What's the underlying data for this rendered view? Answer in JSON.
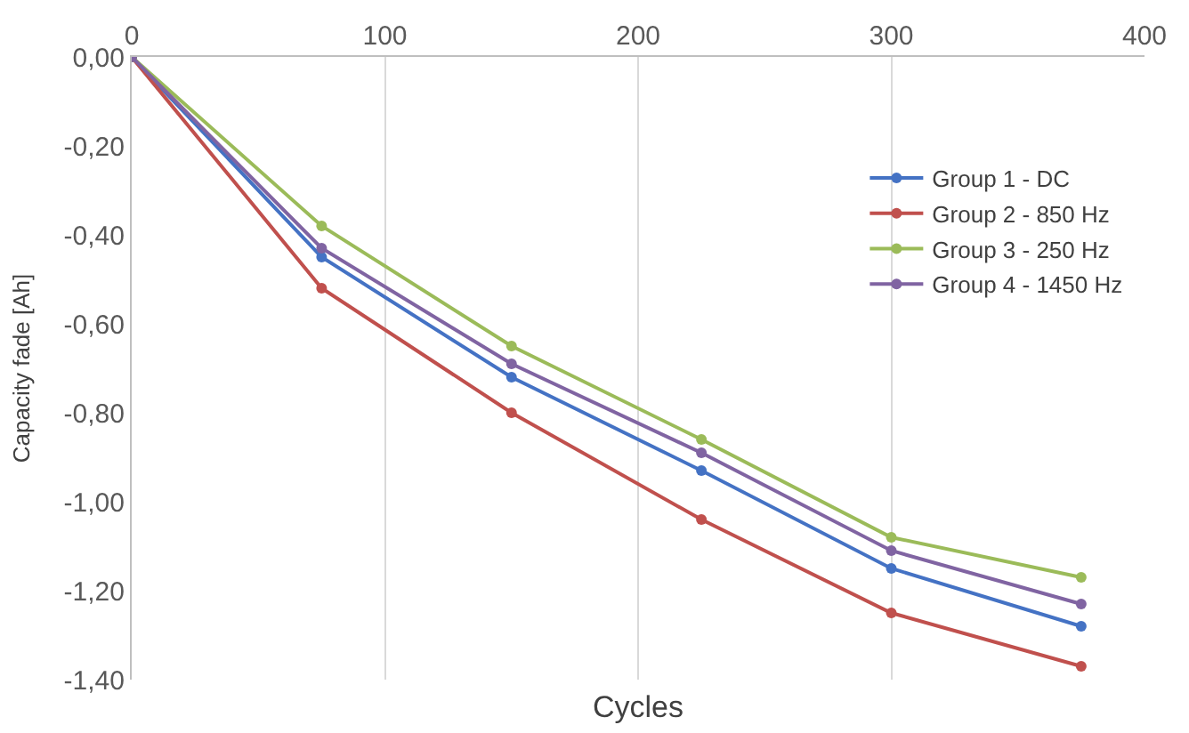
{
  "chart_data": {
    "type": "line",
    "xlabel": "Cycles",
    "ylabel": "Capacity fade [Ah]",
    "x": [
      0,
      75,
      150,
      225,
      300,
      375
    ],
    "series": [
      {
        "name": "Group 1 - DC",
        "color": "#4472c4",
        "values": [
          0,
          -0.45,
          -0.72,
          -0.93,
          -1.15,
          -1.28
        ]
      },
      {
        "name": "Group 2 - 850 Hz",
        "color": "#c0504d",
        "values": [
          0,
          -0.52,
          -0.8,
          -1.04,
          -1.25,
          -1.37
        ]
      },
      {
        "name": "Group 3 - 250 Hz",
        "color": "#9bbb59",
        "values": [
          0,
          -0.38,
          -0.65,
          -0.86,
          -1.08,
          -1.17
        ]
      },
      {
        "name": "Group 4 - 1450 Hz",
        "color": "#8064a2",
        "values": [
          0,
          -0.43,
          -0.69,
          -0.89,
          -1.11,
          -1.23
        ]
      }
    ],
    "xlim": [
      0,
      400
    ],
    "xticks": [
      0,
      100,
      200,
      300,
      400
    ],
    "ylim": [
      -1.4,
      0
    ],
    "yticks": [
      {
        "value": 0,
        "label": "0,00"
      },
      {
        "value": -0.2,
        "label": "-0,20"
      },
      {
        "value": -0.4,
        "label": "-0,40"
      },
      {
        "value": -0.6,
        "label": "-0,60"
      },
      {
        "value": -0.8,
        "label": "-0,80"
      },
      {
        "value": -1.0,
        "label": "-1,00"
      },
      {
        "value": -1.2,
        "label": "-1,20"
      },
      {
        "value": -1.4,
        "label": "-1,40"
      }
    ],
    "grid": "x",
    "legend": "right",
    "marker": "circle",
    "line_style": "solid"
  }
}
